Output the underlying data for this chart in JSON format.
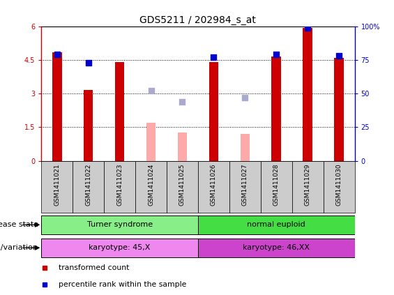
{
  "title": "GDS5211 / 202984_s_at",
  "samples": [
    "GSM1411021",
    "GSM1411022",
    "GSM1411023",
    "GSM1411024",
    "GSM1411025",
    "GSM1411026",
    "GSM1411027",
    "GSM1411028",
    "GSM1411029",
    "GSM1411030"
  ],
  "transformed_count": [
    4.85,
    3.15,
    4.4,
    null,
    null,
    4.4,
    null,
    4.65,
    5.95,
    4.6
  ],
  "transformed_count_absent": [
    null,
    null,
    null,
    1.7,
    1.25,
    null,
    1.2,
    null,
    null,
    null
  ],
  "percentile_rank": [
    79,
    73,
    null,
    null,
    null,
    77,
    null,
    79,
    99,
    78
  ],
  "percentile_rank_absent": [
    null,
    null,
    null,
    52,
    44,
    null,
    47,
    null,
    null,
    null
  ],
  "ylim_left": [
    0,
    6
  ],
  "ylim_right": [
    0,
    100
  ],
  "yticks_left": [
    0,
    1.5,
    3.0,
    4.5,
    6.0
  ],
  "ytick_labels_left": [
    "0",
    "1.5",
    "3",
    "4.5",
    "6"
  ],
  "yticks_right": [
    0,
    25,
    50,
    75,
    100
  ],
  "ytick_labels_right": [
    "0",
    "25",
    "50",
    "75",
    "100%"
  ],
  "hlines": [
    1.5,
    3.0,
    4.5
  ],
  "color_red": "#cc0000",
  "color_pink": "#ffaaaa",
  "color_blue": "#0000cc",
  "color_blue_light": "#aaaacc",
  "color_green_ts": "#88ee88",
  "color_green_ne": "#44dd44",
  "color_magenta_light": "#ee88ee",
  "color_magenta_dark": "#cc44cc",
  "color_gray": "#cccccc",
  "bar_width": 0.3,
  "marker_size": 35
}
